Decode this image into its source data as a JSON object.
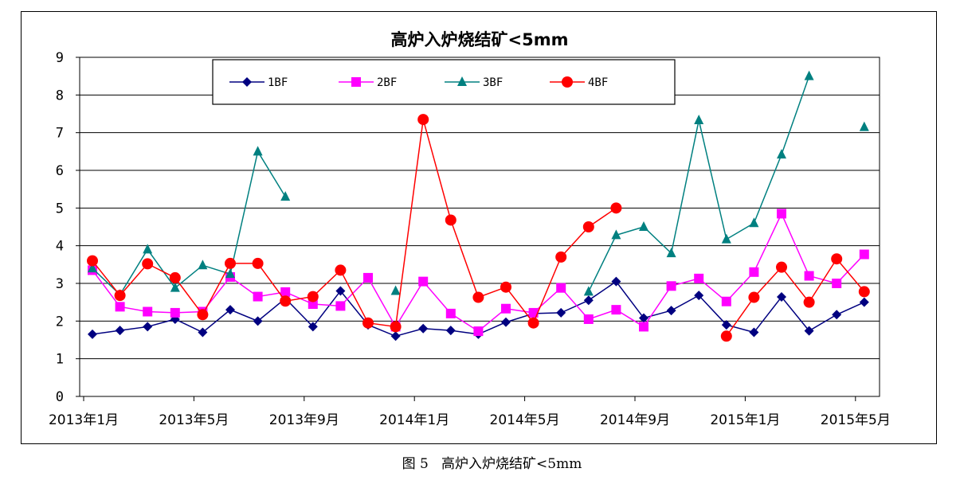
{
  "caption": "图 5   高炉入炉烧结矿<5mm",
  "chart_data": {
    "type": "line",
    "title": "高炉入炉烧结矿<5mm",
    "xlabel": "",
    "ylabel": "",
    "ylim": [
      0,
      9
    ],
    "yticks": [
      "0",
      "1",
      "2",
      "3",
      "4",
      "5",
      "6",
      "7",
      "8",
      "9"
    ],
    "xtick_labels": [
      "2013年1月",
      "2013年5月",
      "2013年9月",
      "2014年1月",
      "2014年5月",
      "2014年9月",
      "2015年1月",
      "2015年5月"
    ],
    "grid": true,
    "legend_position": "top",
    "categories": [
      "2013-01",
      "2013-02",
      "2013-03",
      "2013-04",
      "2013-05",
      "2013-06",
      "2013-07",
      "2013-08",
      "2013-09",
      "2013-10",
      "2013-11",
      "2013-12",
      "2014-01",
      "2014-02",
      "2014-03",
      "2014-04",
      "2014-05",
      "2014-06",
      "2014-07",
      "2014-08",
      "2014-09",
      "2014-10",
      "2014-11",
      "2014-12",
      "2015-01",
      "2015-02",
      "2015-03",
      "2015-04",
      "2015-05"
    ],
    "series": [
      {
        "name": "1BF",
        "color": "#000080",
        "marker": "diamond",
        "values": [
          1.65,
          1.75,
          1.85,
          2.05,
          1.7,
          2.3,
          2.0,
          2.6,
          1.85,
          2.8,
          1.9,
          1.6,
          1.8,
          1.75,
          1.65,
          1.97,
          2.2,
          2.22,
          2.55,
          3.05,
          2.08,
          2.28,
          2.68,
          1.9,
          1.7,
          2.64,
          1.74,
          2.17,
          2.5
        ]
      },
      {
        "name": "2BF",
        "color": "#ff00ff",
        "marker": "square",
        "values": [
          3.35,
          2.38,
          2.25,
          2.22,
          2.25,
          3.17,
          2.65,
          2.77,
          2.45,
          2.4,
          3.15,
          1.85,
          3.05,
          2.2,
          1.73,
          2.33,
          2.22,
          2.88,
          2.05,
          2.3,
          1.85,
          2.93,
          3.13,
          2.52,
          3.3,
          4.85,
          3.2,
          3.0,
          3.77
        ]
      },
      {
        "name": "3BF",
        "color": "#008080",
        "marker": "triangle",
        "values": [
          3.4,
          2.7,
          3.9,
          2.88,
          3.48,
          3.25,
          6.5,
          5.3,
          null,
          null,
          null,
          2.8,
          null,
          null,
          null,
          null,
          null,
          null,
          2.78,
          4.28,
          4.5,
          3.8,
          7.33,
          4.17,
          4.6,
          6.42,
          8.5,
          null,
          7.15
        ]
      },
      {
        "name": "4BF",
        "color": "#ff0000",
        "marker": "circle",
        "values": [
          3.6,
          2.68,
          3.52,
          3.15,
          2.17,
          3.53,
          3.53,
          2.53,
          2.65,
          3.35,
          1.95,
          1.85,
          7.35,
          4.68,
          2.63,
          2.9,
          1.95,
          3.7,
          4.5,
          5.0,
          null,
          null,
          null,
          1.6,
          2.63,
          3.43,
          2.5,
          3.65,
          2.78
        ]
      }
    ]
  }
}
